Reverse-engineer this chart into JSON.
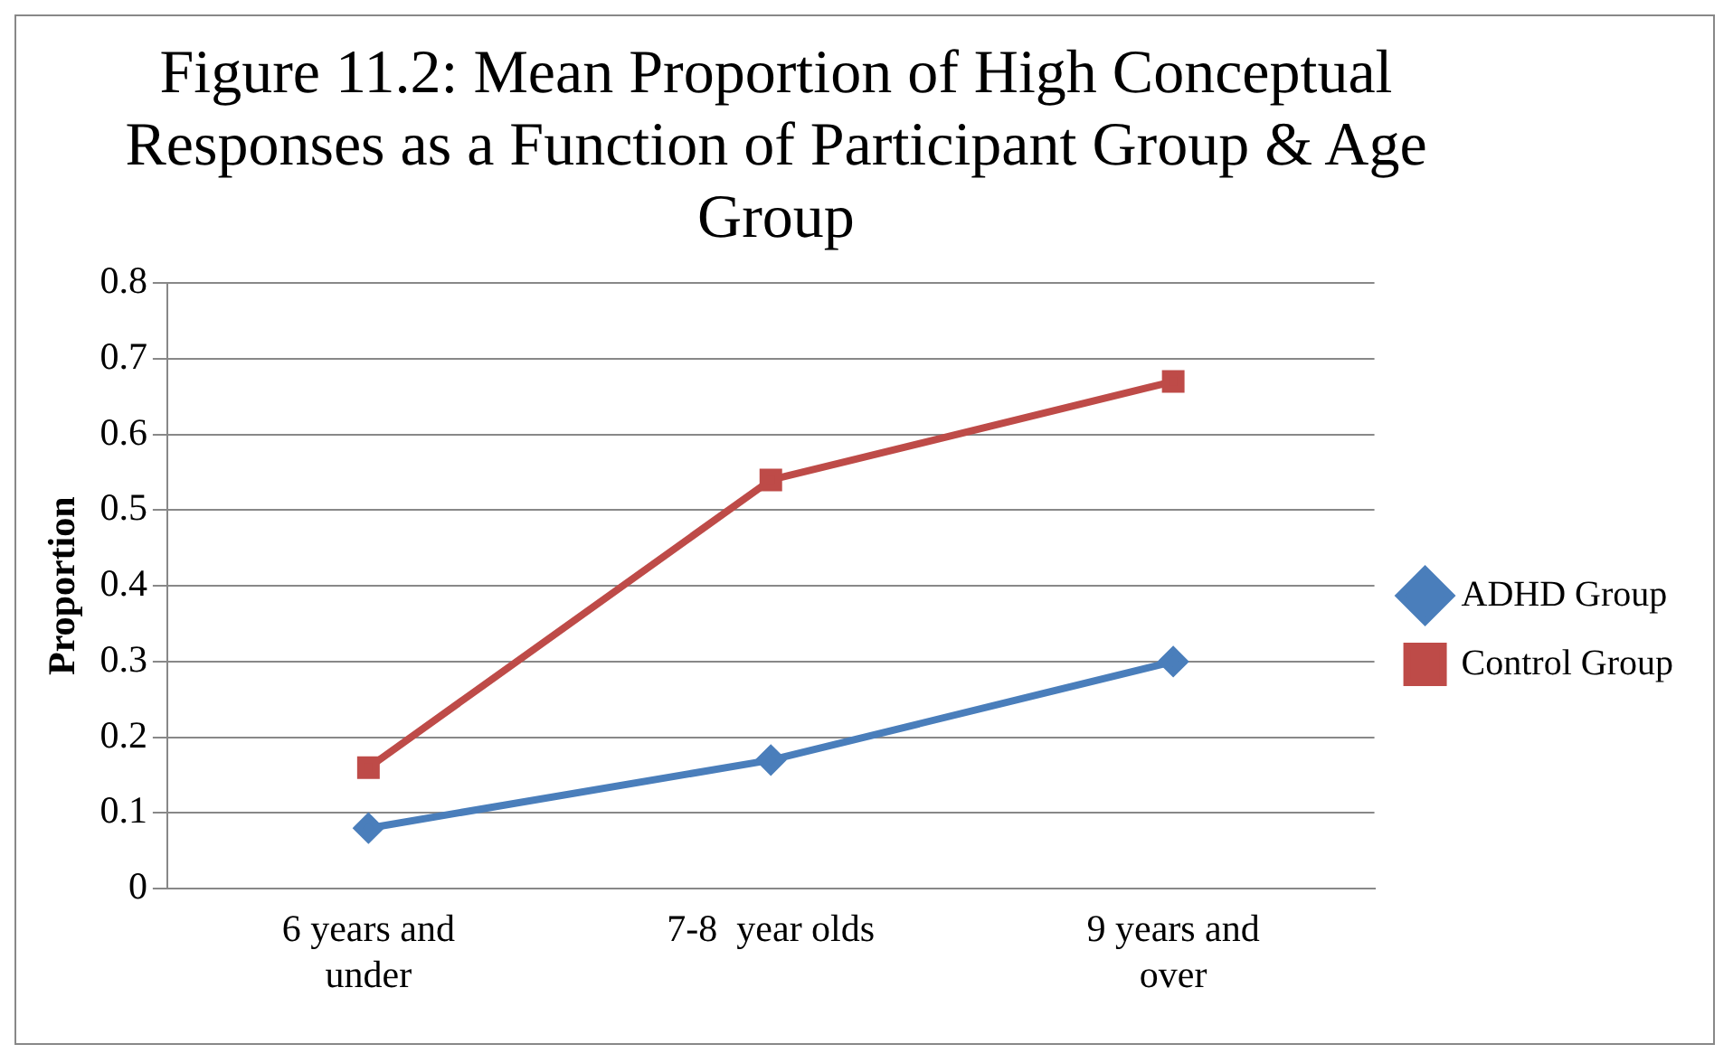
{
  "chart_data": {
    "type": "line",
    "title": "Figure 11.2: Mean Proportion of High Conceptual Responses as a Function of Participant Group & Age Group",
    "ylabel": "Proportion",
    "categories": [
      "6 years and under",
      "7-8  year olds",
      "9 years and over"
    ],
    "series": [
      {
        "name": "ADHD Group",
        "color": "#4a7ebb",
        "marker": "diamond",
        "values": [
          0.08,
          0.17,
          0.3
        ]
      },
      {
        "name": "Control Group",
        "color": "#be4b48",
        "marker": "square",
        "values": [
          0.16,
          0.54,
          0.67
        ]
      }
    ],
    "ylim": [
      0,
      0.8
    ],
    "yticks": [
      0,
      0.1,
      0.2,
      0.3,
      0.4,
      0.5,
      0.6,
      0.7,
      0.8
    ],
    "grid": "y",
    "legend": "right"
  }
}
